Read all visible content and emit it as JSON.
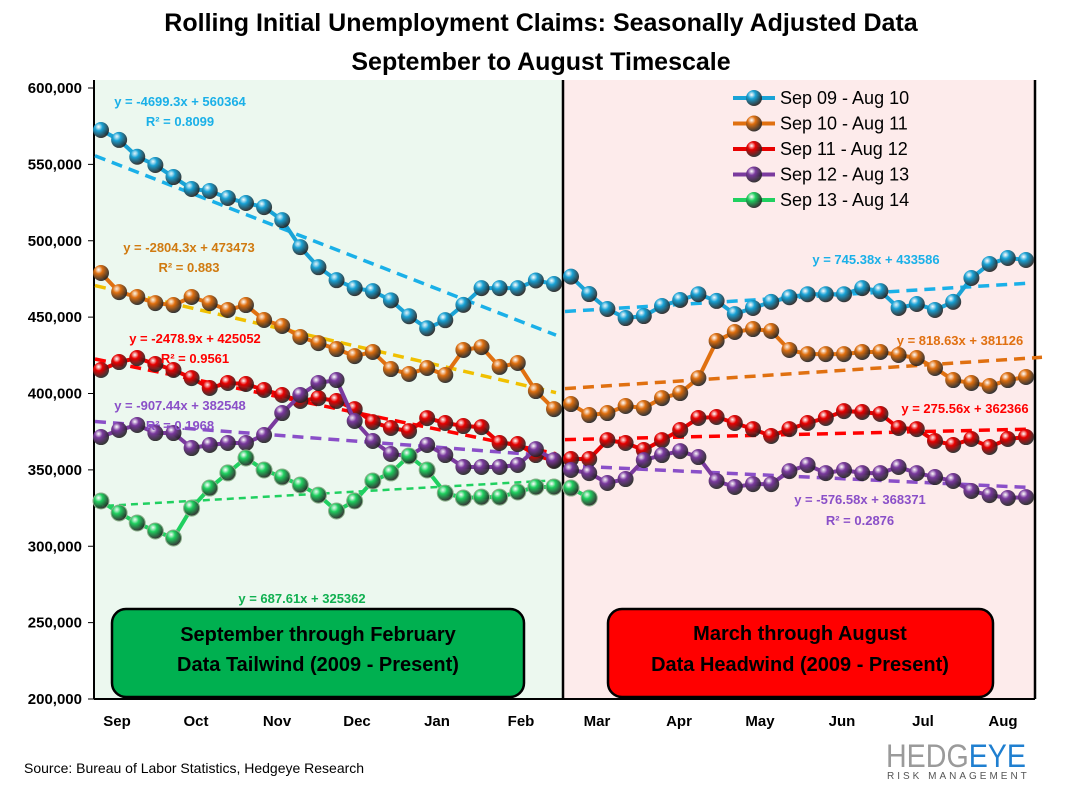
{
  "chart_data": {
    "type": "line",
    "title": "Rolling Initial Unemployment Claims: Seasonally Adjusted Data",
    "subtitle": "September to August Timescale",
    "xlabel": "",
    "ylabel": "",
    "ylim": [
      200000,
      600000
    ],
    "y_ticks": [
      "200,000",
      "250,000",
      "300,000",
      "350,000",
      "400,000",
      "450,000",
      "500,000",
      "550,000",
      "600,000"
    ],
    "x_tick_labels": [
      "Sep",
      "Oct",
      "Nov",
      "Dec",
      "Jan",
      "Feb",
      "Mar",
      "Apr",
      "May",
      "Jun",
      "Jul",
      "Aug"
    ],
    "grid": false,
    "legend_position": "top-right",
    "points_per_series": 52,
    "series": [
      {
        "name": "Sep 09 - Aug 10",
        "color": "#1aa3d6",
        "values": [
          572500,
          566000,
          555000,
          549600,
          541700,
          533900,
          532600,
          528000,
          524700,
          522000,
          513500,
          495800,
          482700,
          474200,
          469000,
          467000,
          461000,
          450600,
          442700,
          448000,
          458000,
          469000,
          469000,
          469000,
          474000,
          471700,
          476500,
          465100,
          455300,
          449400,
          450700,
          457300,
          461200,
          465000,
          460600,
          452000,
          456000,
          460000,
          463000,
          465000,
          465000,
          465000,
          469000,
          467000,
          456000,
          458600,
          454700,
          460000,
          475600,
          484800,
          488700,
          487400
        ]
      },
      {
        "name": "Sep 10 - Aug 11",
        "color": "#e07010",
        "values": [
          478900,
          466400,
          463200,
          459200,
          457900,
          463200,
          459200,
          454700,
          457900,
          448100,
          444200,
          437000,
          433000,
          429100,
          424500,
          427200,
          416000,
          412800,
          416700,
          412100,
          428500,
          430400,
          417400,
          420000,
          401600,
          389800,
          393100,
          385900,
          387200,
          391800,
          390500,
          397000,
          400300,
          410100,
          434400,
          440300,
          442200,
          440900,
          428500,
          425800,
          425800,
          425800,
          427200,
          427200,
          425200,
          423200,
          416700,
          408800,
          406900,
          404900,
          408800,
          410800
        ]
      },
      {
        "name": "Sep 11 - Aug 12",
        "color": "#e80000",
        "values": [
          415400,
          420600,
          423200,
          419300,
          415400,
          410100,
          403600,
          406900,
          406200,
          402300,
          399000,
          395100,
          397000,
          395100,
          389800,
          381300,
          377400,
          375400,
          383900,
          380700,
          378700,
          378000,
          367600,
          366900,
          359700,
          355800,
          357100,
          357100,
          369500,
          367600,
          363000,
          369500,
          376100,
          384000,
          384600,
          380700,
          376700,
          372200,
          376700,
          380700,
          384000,
          388500,
          387900,
          386600,
          377400,
          376700,
          368900,
          366300,
          370200,
          365000,
          370200,
          371500
        ]
      },
      {
        "name": "Sep 12 - Aug 13",
        "color": "#7a3a9e",
        "values": [
          371500,
          376100,
          379400,
          374100,
          374100,
          364300,
          366300,
          367600,
          367600,
          372800,
          387200,
          399000,
          406900,
          408800,
          382000,
          368900,
          360400,
          359100,
          366300,
          359700,
          351900,
          351900,
          351900,
          353200,
          363600,
          356400,
          349900,
          347900,
          341400,
          344000,
          356400,
          359700,
          362300,
          358400,
          342700,
          338800,
          340700,
          340700,
          349200,
          353200,
          347900,
          349900,
          347900,
          347900,
          351900,
          347900,
          345300,
          342700,
          336200,
          333500,
          331600,
          332200
        ]
      },
      {
        "name": "Sep 13 - Aug 14",
        "color": "#20d060",
        "values": [
          329600,
          321800,
          315200,
          310000,
          305400,
          325000,
          338100,
          348000,
          357800,
          349900,
          345300,
          340100,
          333500,
          323100,
          329600,
          342700,
          348000,
          359100,
          349900,
          334800,
          331600,
          332200,
          332200,
          335500,
          338800,
          338800,
          338100,
          331600,
          null,
          null,
          null,
          null,
          null,
          null,
          null,
          null,
          null,
          null,
          null,
          null,
          null,
          null,
          null,
          null,
          null,
          null,
          null,
          null,
          null,
          null,
          null,
          null
        ]
      }
    ],
    "trendlines": [
      {
        "series": "Sep 09 - Aug 10",
        "panel": "left",
        "slope": -4699.3,
        "intercept": 560364,
        "equation": "y = -4699.3x + 560364",
        "r2": "R² = 0.8099",
        "color": "#1ab0e8"
      },
      {
        "series": "Sep 10 - Aug 11",
        "panel": "left",
        "slope": -2804.3,
        "intercept": 473473,
        "equation": "y = -2804.3x + 473473",
        "r2": "R² = 0.883",
        "color": "#f0c000",
        "label_color": "#d07a10"
      },
      {
        "series": "Sep 11 - Aug 12",
        "panel": "left",
        "slope": -2478.9,
        "intercept": 425052,
        "equation": "y = -2478.9x + 425052",
        "r2": "R² = 0.9561",
        "color": "#ff0000"
      },
      {
        "series": "Sep 12 - Aug 13",
        "panel": "left",
        "slope": -907.44,
        "intercept": 382548,
        "equation": "y = -907.44x + 382548",
        "r2": "R² = 0.1968",
        "color": "#8a4fc8"
      },
      {
        "series": "Sep 13 - Aug 14",
        "panel": "left",
        "slope": 687.61,
        "intercept": 325362,
        "equation": "y = 687.61x + 325362",
        "r2": "",
        "color": "#20d060",
        "label_color": "#10b050"
      },
      {
        "series": "Sep 09 - Aug 10",
        "panel": "right",
        "slope": 745.38,
        "intercept": 433586,
        "equation": "y = 745.38x + 433586",
        "r2": "",
        "color": "#1ab0e8"
      },
      {
        "series": "Sep 10 - Aug 11",
        "panel": "right",
        "slope": 818.63,
        "intercept": 381126,
        "equation": "y = 818.63x + 381126",
        "r2": "",
        "color": "#e07010"
      },
      {
        "series": "Sep 11 - Aug 12",
        "panel": "right",
        "slope": 275.56,
        "intercept": 362366,
        "equation": "y = 275.56x + 362366",
        "r2": "",
        "color": "#ff0000"
      },
      {
        "series": "Sep 12 - Aug 13",
        "panel": "right",
        "slope": -576.58,
        "intercept": 368371,
        "equation": "y = -576.58x + 368371",
        "r2": "R² = 0.2876",
        "color": "#8a4fc8"
      }
    ],
    "panels": {
      "left": {
        "line1": "September through  February",
        "line2": "Data Tailwind  (2009 - Present)",
        "background": "#ecf8ef",
        "box_color": "#00b050"
      },
      "right": {
        "line1": "March through August",
        "line2": "Data Headwind (2009 - Present)",
        "background": "#fdebeb",
        "box_color": "#ff0000"
      }
    }
  },
  "source": "Source: Bureau of Labor Statistics, Hedgeye Research",
  "logo": {
    "brand_left": "HEDG",
    "brand_right": "EYE",
    "tagline": "RISK MANAGEMENT"
  }
}
